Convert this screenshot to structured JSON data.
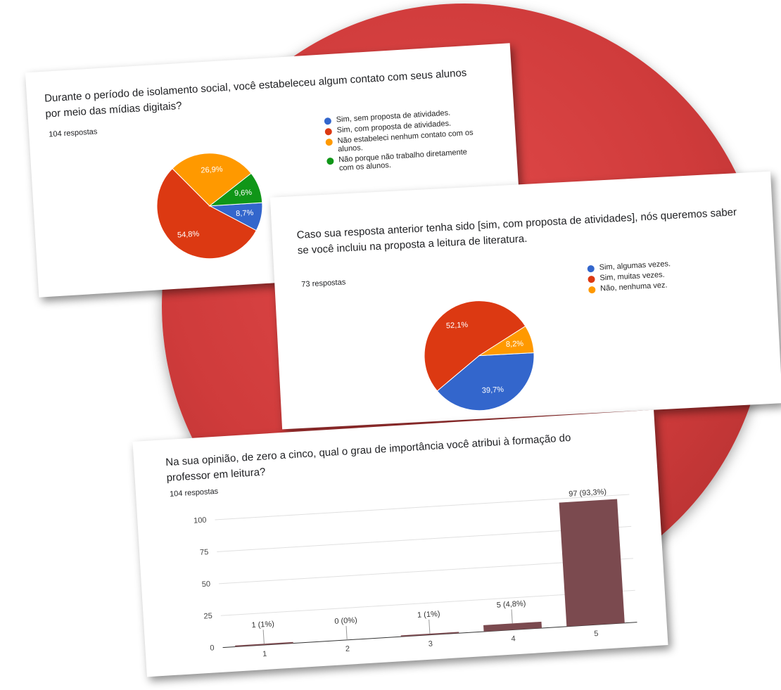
{
  "chart_data": [
    {
      "type": "pie",
      "title": "Durante o período de isolamento social, você estabeleceu algum contato com seus alunos por meio das mídias digitais?",
      "subtitle": "104 respostas",
      "categories": [
        "Sim, sem proposta de atividades.",
        "Sim, com proposta de atividades.",
        "Não estabeleci nenhum contato com os alunos.",
        "Não porque não trabalho diretamente com os alunos."
      ],
      "values": [
        8.7,
        54.8,
        26.9,
        9.6
      ],
      "value_labels": [
        "8,7%",
        "54,8%",
        "26,9%",
        "9,6%"
      ],
      "colors": [
        "#3366cc",
        "#dc3912",
        "#ff9900",
        "#109618"
      ]
    },
    {
      "type": "pie",
      "title": "Caso sua resposta anterior tenha sido [sim, com proposta de atividades], nós queremos saber se você incluiu na proposta a leitura de literatura.",
      "subtitle": "73 respostas",
      "categories": [
        "Sim, algumas vezes.",
        "Sim, muitas vezes.",
        "Não, nenhuma vez."
      ],
      "values": [
        39.7,
        52.1,
        8.2
      ],
      "value_labels": [
        "39,7%",
        "52,1%",
        "8,2%"
      ],
      "colors": [
        "#3366cc",
        "#dc3912",
        "#ff9900"
      ]
    },
    {
      "type": "bar",
      "title": "Na sua opinião, de zero a cinco, qual o grau de importância você atribui à formação do professor em leitura?",
      "subtitle": "104 respostas",
      "categories": [
        "1",
        "2",
        "3",
        "4",
        "5"
      ],
      "values": [
        1,
        0,
        1,
        5,
        97
      ],
      "value_labels": [
        "1 (1%)",
        "0 (0%)",
        "1 (1%)",
        "5 (4,8%)",
        "97 (93,3%)"
      ],
      "color": "#7b4a4f",
      "ylim": [
        0,
        100
      ],
      "yticks": [
        0,
        25,
        50,
        75,
        100
      ],
      "grid": true
    }
  ]
}
